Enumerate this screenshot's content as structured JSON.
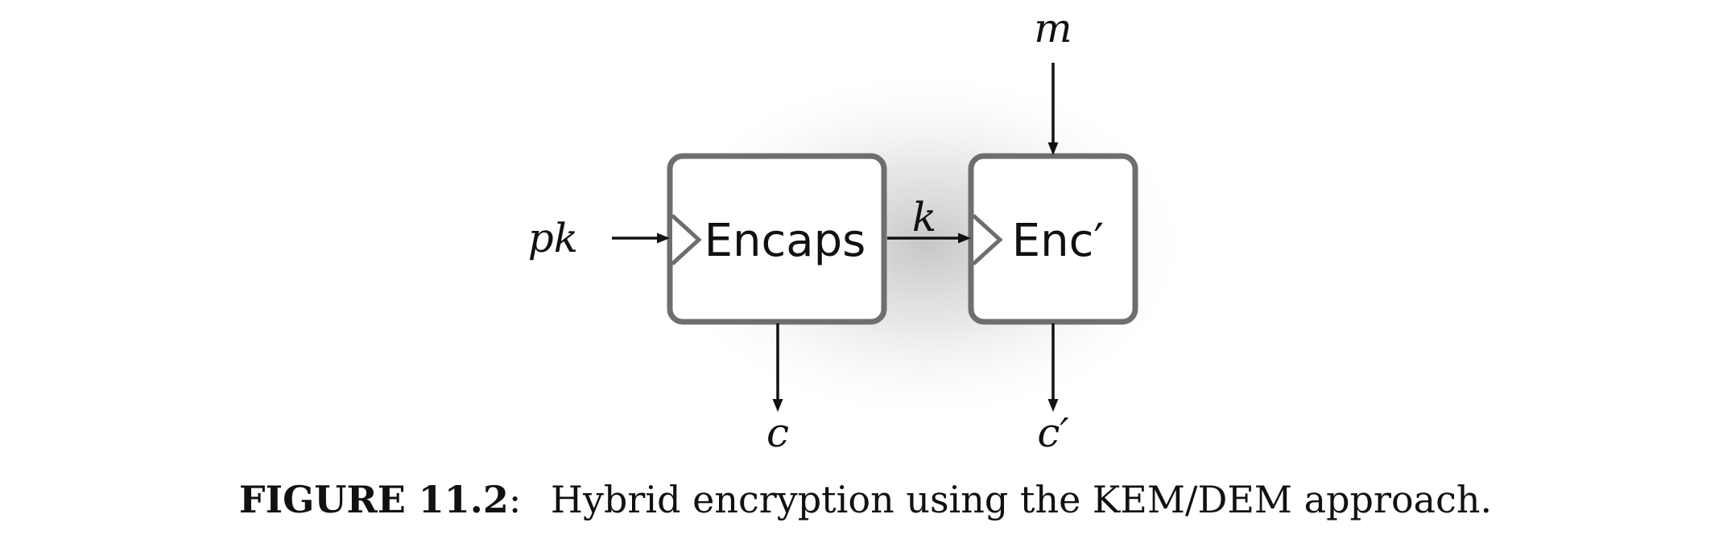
{
  "diagram": {
    "boxes": {
      "encaps": "Encaps",
      "enc_prime": "Enc′"
    },
    "labels": {
      "pk": "pk",
      "k": "k",
      "m": "m",
      "c": "c",
      "c_prime": "c′"
    }
  },
  "caption": {
    "label": "FIGURE 11.2",
    "separator": ":",
    "text": "Hybrid encryption using the KEM/DEM approach."
  }
}
